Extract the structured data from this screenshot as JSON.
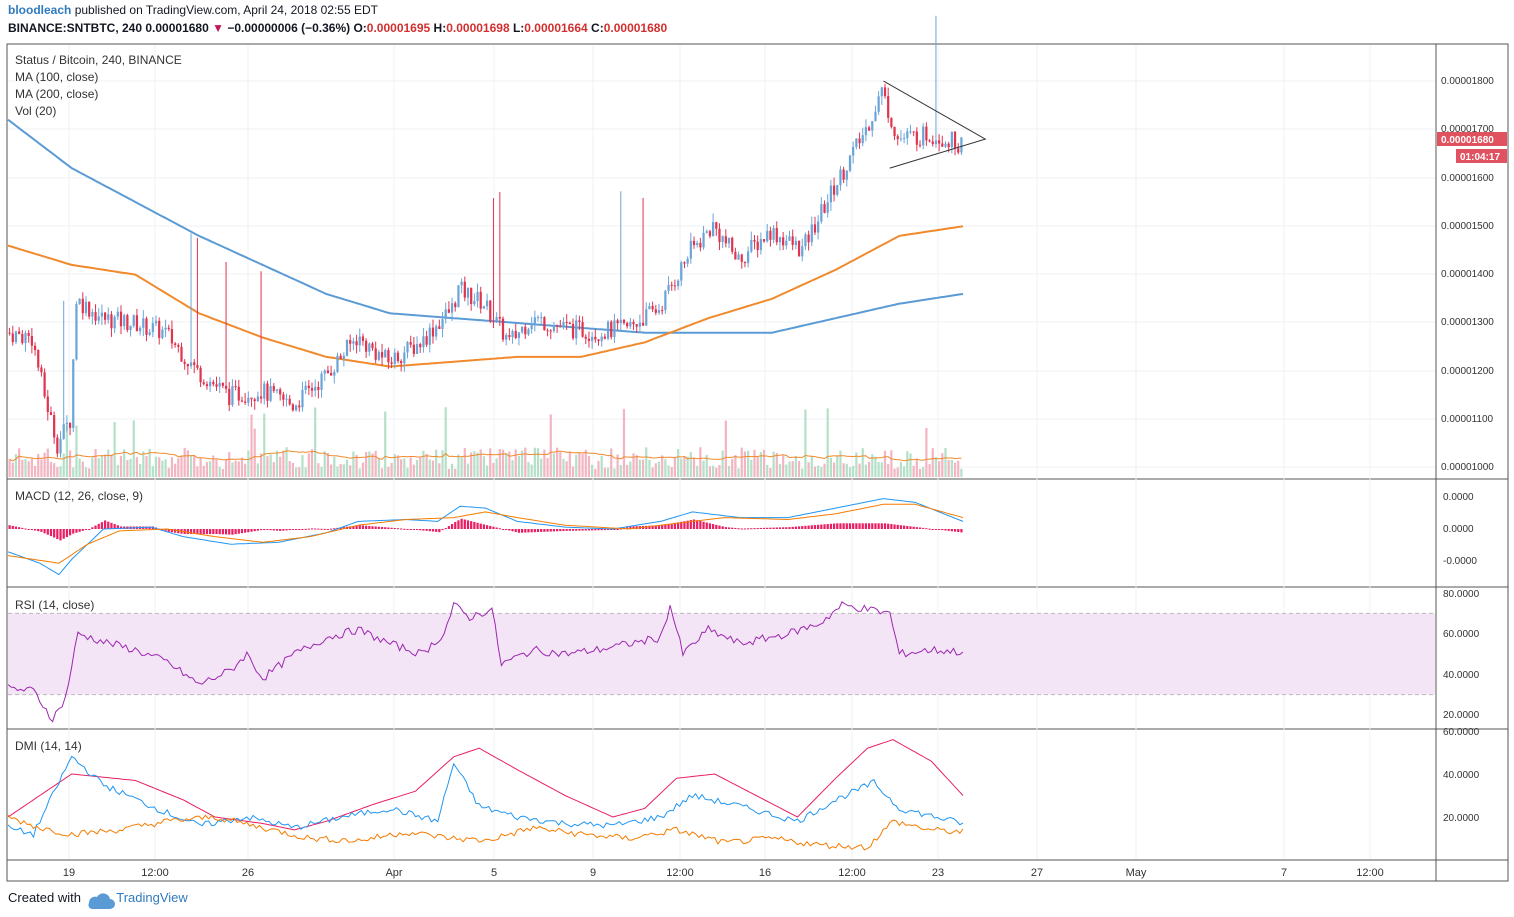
{
  "header": {
    "user": "bloodleach",
    "published": "published on TradingView.com, April 24, 2018 02:55 EDT",
    "symbol": "BINANCE:SNTBTC, 240",
    "last": "0.00001680",
    "change_arrow": "▼",
    "change": "−0.00000006 (−0.36%)",
    "o_label": "O:",
    "o": "0.00001695",
    "h_label": "H:",
    "h": "0.00001698",
    "l_label": "L:",
    "l": "0.00001664",
    "c_label": "C:",
    "c": "0.00001680"
  },
  "footer": {
    "created": "Created with",
    "brand": "TradingView"
  },
  "colors": {
    "up": "#6ba5d8",
    "down": "#e0344f",
    "ma100": "#f08a2c",
    "ma200": "#5b9bd5",
    "vol_up": "#b5e0c8",
    "vol_down": "#f3b5c2",
    "macd": "#2196f3",
    "signal": "#f57c00",
    "hist": "#e91e63",
    "rsi": "#9c27b0",
    "rsi_band": "#f3e5f5"
  },
  "chart_data": {
    "type": "candlestick",
    "title": "Status / Bitcoin, 240, BINANCE",
    "legend": [
      "MA (100, close)",
      "MA (200, close)",
      "Vol (20)"
    ],
    "price_axis": {
      "ticks": [
        "0.00001800",
        "0.00001700",
        "0.00001600",
        "0.00001500",
        "0.00001400",
        "0.00001300",
        "0.00001200",
        "0.00001100",
        "0.00001000"
      ],
      "last_price_label": "0.00001680",
      "countdown_label": "01:04:17"
    },
    "x_ticks": [
      "19",
      "12:00",
      "26",
      "Apr",
      "5",
      "9",
      "12:00",
      "16",
      "12:00",
      "23",
      "27",
      "May",
      "7",
      "12:00"
    ],
    "price_anchors": [
      [
        0,
        1.28e-05
      ],
      [
        8,
        1.27e-05
      ],
      [
        12,
        1.15e-05
      ],
      [
        16,
        1.05e-05
      ],
      [
        20,
        1.1e-05
      ],
      [
        22,
        1.35e-05
      ],
      [
        30,
        1.31e-05
      ],
      [
        40,
        1.3e-05
      ],
      [
        50,
        1.28e-05
      ],
      [
        60,
        1.2e-05
      ],
      [
        70,
        1.15e-05
      ],
      [
        80,
        1.16e-05
      ],
      [
        90,
        1.13e-05
      ],
      [
        100,
        1.19e-05
      ],
      [
        110,
        1.27e-05
      ],
      [
        120,
        1.22e-05
      ],
      [
        130,
        1.26e-05
      ],
      [
        140,
        1.33e-05
      ],
      [
        142,
        1.37e-05
      ],
      [
        150,
        1.34e-05
      ],
      [
        158,
        1.26e-05
      ],
      [
        165,
        1.31e-05
      ],
      [
        175,
        1.29e-05
      ],
      [
        185,
        1.28e-05
      ],
      [
        195,
        1.29e-05
      ],
      [
        205,
        1.33e-05
      ],
      [
        215,
        1.45e-05
      ],
      [
        222,
        1.5e-05
      ],
      [
        230,
        1.43e-05
      ],
      [
        240,
        1.49e-05
      ],
      [
        250,
        1.45e-05
      ],
      [
        260,
        1.58e-05
      ],
      [
        270,
        1.7e-05
      ],
      [
        275,
        1.78e-05
      ],
      [
        280,
        1.68e-05
      ],
      [
        290,
        1.69e-05
      ],
      [
        300,
        1.67e-05
      ]
    ],
    "ma100_anchors": [
      [
        0,
        1.46e-05
      ],
      [
        20,
        1.42e-05
      ],
      [
        40,
        1.4e-05
      ],
      [
        60,
        1.32e-05
      ],
      [
        80,
        1.27e-05
      ],
      [
        100,
        1.23e-05
      ],
      [
        120,
        1.21e-05
      ],
      [
        140,
        1.22e-05
      ],
      [
        160,
        1.23e-05
      ],
      [
        180,
        1.23e-05
      ],
      [
        200,
        1.26e-05
      ],
      [
        220,
        1.31e-05
      ],
      [
        240,
        1.35e-05
      ],
      [
        260,
        1.41e-05
      ],
      [
        280,
        1.48e-05
      ],
      [
        300,
        1.5e-05
      ]
    ],
    "ma200_anchors": [
      [
        0,
        1.72e-05
      ],
      [
        20,
        1.62e-05
      ],
      [
        40,
        1.55e-05
      ],
      [
        60,
        1.48e-05
      ],
      [
        80,
        1.42e-05
      ],
      [
        100,
        1.36e-05
      ],
      [
        120,
        1.32e-05
      ],
      [
        140,
        1.31e-05
      ],
      [
        160,
        1.3e-05
      ],
      [
        180,
        1.29e-05
      ],
      [
        200,
        1.28e-05
      ],
      [
        220,
        1.28e-05
      ],
      [
        240,
        1.28e-05
      ],
      [
        260,
        1.31e-05
      ],
      [
        280,
        1.34e-05
      ],
      [
        300,
        1.36e-05
      ]
    ],
    "triangle": {
      "top_start": [
        275,
        1.8e-05
      ],
      "bottom_start": [
        277,
        1.62e-05
      ],
      "apex": [
        307,
        1.68e-05
      ]
    },
    "volume": {
      "max": 120
    },
    "macd": {
      "title": "MACD (12, 26, close, 9)",
      "ticks": [
        "0.0000",
        "0.0000",
        "-0.0000"
      ],
      "macd_anchors": [
        [
          0,
          -0.6
        ],
        [
          10,
          -0.9
        ],
        [
          16,
          -1.2
        ],
        [
          20,
          -0.8
        ],
        [
          30,
          0.0
        ],
        [
          45,
          0.05
        ],
        [
          55,
          -0.2
        ],
        [
          70,
          -0.4
        ],
        [
          85,
          -0.35
        ],
        [
          100,
          -0.1
        ],
        [
          110,
          0.2
        ],
        [
          125,
          0.25
        ],
        [
          135,
          0.2
        ],
        [
          142,
          0.6
        ],
        [
          150,
          0.55
        ],
        [
          160,
          0.2
        ],
        [
          175,
          0.05
        ],
        [
          190,
          0.0
        ],
        [
          205,
          0.2
        ],
        [
          215,
          0.45
        ],
        [
          230,
          0.3
        ],
        [
          245,
          0.3
        ],
        [
          260,
          0.55
        ],
        [
          275,
          0.8
        ],
        [
          285,
          0.7
        ],
        [
          300,
          0.2
        ]
      ],
      "signal_anchors": [
        [
          0,
          -0.7
        ],
        [
          16,
          -0.9
        ],
        [
          25,
          -0.4
        ],
        [
          35,
          -0.05
        ],
        [
          50,
          0.0
        ],
        [
          65,
          -0.2
        ],
        [
          80,
          -0.35
        ],
        [
          95,
          -0.2
        ],
        [
          110,
          0.1
        ],
        [
          125,
          0.25
        ],
        [
          140,
          0.3
        ],
        [
          150,
          0.45
        ],
        [
          160,
          0.3
        ],
        [
          175,
          0.1
        ],
        [
          195,
          0.0
        ],
        [
          210,
          0.15
        ],
        [
          225,
          0.3
        ],
        [
          245,
          0.25
        ],
        [
          260,
          0.4
        ],
        [
          275,
          0.65
        ],
        [
          285,
          0.65
        ],
        [
          300,
          0.3
        ]
      ]
    },
    "rsi": {
      "title": "RSI (14, close)",
      "ticks": [
        "80.0000",
        "60.0000",
        "40.0000",
        "20.0000"
      ],
      "upper": 70,
      "lower": 30,
      "anchors": [
        [
          0,
          33
        ],
        [
          8,
          32
        ],
        [
          14,
          18
        ],
        [
          18,
          28
        ],
        [
          22,
          60
        ],
        [
          30,
          56
        ],
        [
          40,
          52
        ],
        [
          50,
          46
        ],
        [
          60,
          35
        ],
        [
          70,
          42
        ],
        [
          75,
          50
        ],
        [
          80,
          38
        ],
        [
          90,
          50
        ],
        [
          100,
          58
        ],
        [
          110,
          62
        ],
        [
          120,
          55
        ],
        [
          130,
          50
        ],
        [
          137,
          60
        ],
        [
          140,
          74
        ],
        [
          145,
          68
        ],
        [
          152,
          72
        ],
        [
          155,
          45
        ],
        [
          165,
          52
        ],
        [
          175,
          50
        ],
        [
          185,
          52
        ],
        [
          195,
          55
        ],
        [
          205,
          58
        ],
        [
          208,
          74
        ],
        [
          212,
          50
        ],
        [
          220,
          62
        ],
        [
          230,
          55
        ],
        [
          245,
          60
        ],
        [
          255,
          65
        ],
        [
          262,
          74
        ],
        [
          270,
          72
        ],
        [
          277,
          70
        ],
        [
          280,
          50
        ],
        [
          290,
          52
        ],
        [
          300,
          51
        ]
      ]
    },
    "dmi": {
      "title": "DMI (14, 14)",
      "ticks": [
        "60.0000",
        "40.0000",
        "20.0000"
      ],
      "adx_anchors": [
        [
          0,
          20
        ],
        [
          10,
          30
        ],
        [
          20,
          40
        ],
        [
          40,
          37
        ],
        [
          55,
          28
        ],
        [
          65,
          20
        ],
        [
          80,
          17
        ],
        [
          90,
          14
        ],
        [
          100,
          18
        ],
        [
          115,
          26
        ],
        [
          128,
          32
        ],
        [
          140,
          48
        ],
        [
          148,
          52
        ],
        [
          160,
          42
        ],
        [
          175,
          30
        ],
        [
          190,
          20
        ],
        [
          200,
          24
        ],
        [
          210,
          38
        ],
        [
          222,
          40
        ],
        [
          235,
          30
        ],
        [
          248,
          20
        ],
        [
          260,
          38
        ],
        [
          270,
          52
        ],
        [
          278,
          56
        ],
        [
          290,
          46
        ],
        [
          300,
          30
        ]
      ],
      "plus_anchors": [
        [
          0,
          15
        ],
        [
          8,
          12
        ],
        [
          20,
          48
        ],
        [
          30,
          35
        ],
        [
          45,
          25
        ],
        [
          60,
          16
        ],
        [
          75,
          20
        ],
        [
          90,
          15
        ],
        [
          105,
          20
        ],
        [
          120,
          24
        ],
        [
          135,
          18
        ],
        [
          140,
          45
        ],
        [
          148,
          25
        ],
        [
          160,
          20
        ],
        [
          175,
          17
        ],
        [
          190,
          16
        ],
        [
          205,
          20
        ],
        [
          215,
          30
        ],
        [
          230,
          25
        ],
        [
          248,
          18
        ],
        [
          260,
          28
        ],
        [
          272,
          36
        ],
        [
          280,
          24
        ],
        [
          300,
          17
        ]
      ],
      "minus_anchors": [
        [
          0,
          20
        ],
        [
          10,
          15
        ],
        [
          20,
          12
        ],
        [
          35,
          14
        ],
        [
          50,
          18
        ],
        [
          65,
          20
        ],
        [
          80,
          15
        ],
        [
          95,
          10
        ],
        [
          110,
          9
        ],
        [
          125,
          13
        ],
        [
          140,
          10
        ],
        [
          150,
          9
        ],
        [
          165,
          15
        ],
        [
          180,
          12
        ],
        [
          195,
          10
        ],
        [
          210,
          14
        ],
        [
          225,
          8
        ],
        [
          240,
          10
        ],
        [
          255,
          7
        ],
        [
          270,
          6
        ],
        [
          278,
          18
        ],
        [
          290,
          14
        ],
        [
          300,
          13
        ]
      ]
    }
  }
}
